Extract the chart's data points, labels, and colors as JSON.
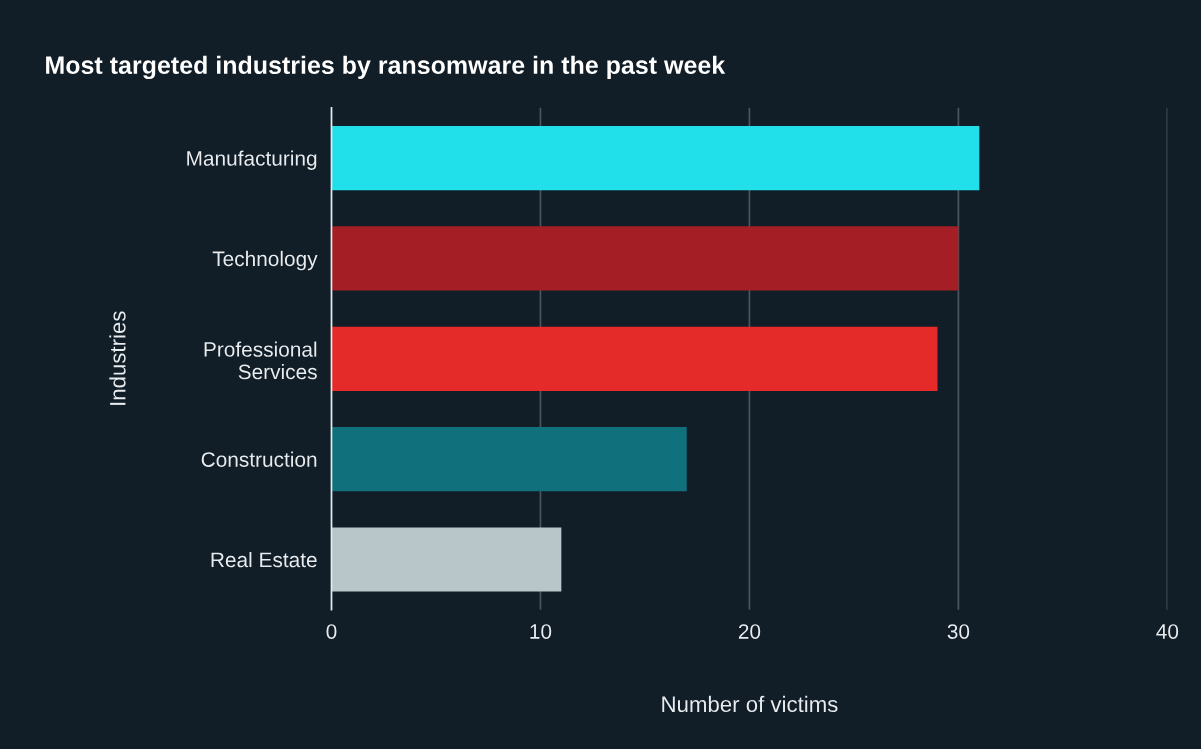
{
  "chart_data": {
    "type": "bar",
    "orientation": "horizontal",
    "title": "Most targeted industries by ransomware in the past week",
    "xlabel": "Number of victims",
    "ylabel": "Industries",
    "categories": [
      "Manufacturing",
      "Technology",
      "Professional\nServices",
      "Construction",
      "Real Estate"
    ],
    "values": [
      31,
      30,
      29,
      17,
      11
    ],
    "colors": [
      "#22e0ea",
      "#a31e25",
      "#e52a2a",
      "#10717c",
      "#b8c5c9"
    ],
    "xlim": [
      0,
      40
    ],
    "xticks": [
      0,
      10,
      20,
      30,
      40
    ],
    "grid": "x",
    "legend": false
  }
}
